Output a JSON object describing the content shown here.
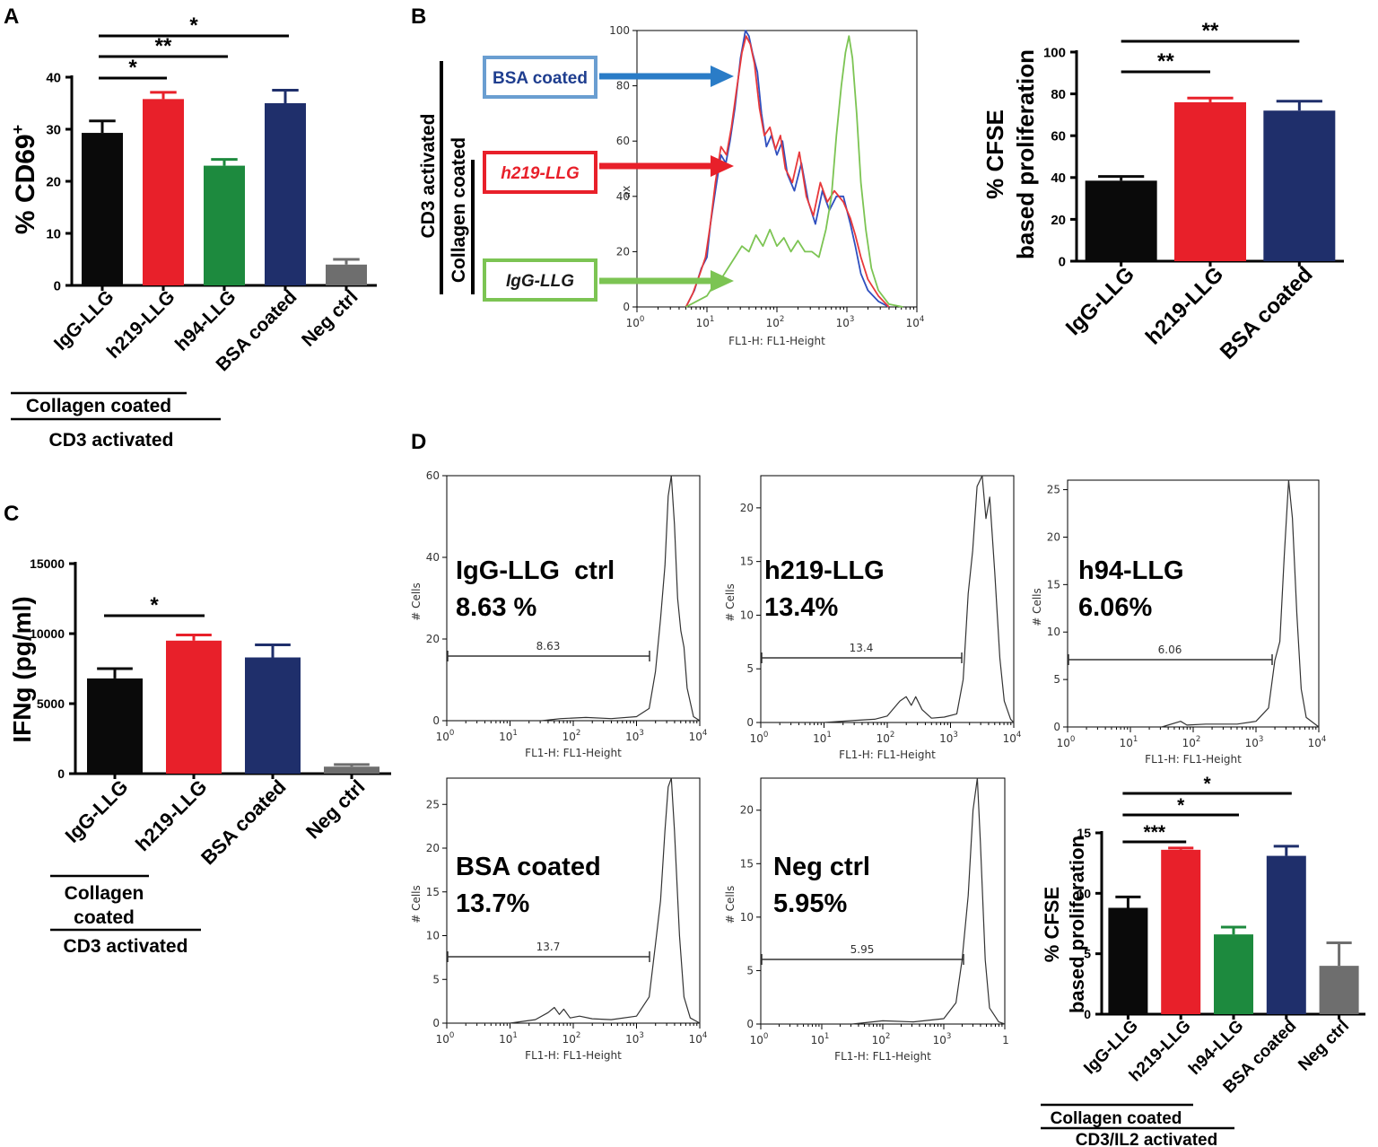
{
  "panels": {
    "A": "A",
    "B": "B",
    "C": "C",
    "D": "D"
  },
  "colors": {
    "black": "#0a0a0a",
    "red": "#e8202a",
    "green": "#1d8a3e",
    "navy": "#1f2f6b",
    "gray": "#6e6e6e",
    "blue_line": "#2f4fbf",
    "red_line": "#e8383a",
    "green_line": "#7cc453"
  },
  "chart_data": [
    {
      "id": "A",
      "type": "bar",
      "ylabel": "% CD69",
      "ylabel_sup": "+",
      "ylim": [
        0,
        40
      ],
      "yticks": [
        0,
        10,
        20,
        30,
        40
      ],
      "categories": [
        "IgG-LLG",
        "h219-LLG",
        "h94-LLG",
        "BSA coated",
        "Neg ctrl"
      ],
      "values": [
        29.3,
        35.8,
        23.0,
        35.0,
        4.0
      ],
      "errors": [
        2.3,
        1.3,
        1.2,
        2.5,
        1.0
      ],
      "colors": [
        "#0a0a0a",
        "#e8202a",
        "#1d8a3e",
        "#1f2f6b",
        "#6e6e6e"
      ],
      "significance": [
        {
          "from": 0,
          "to": 1,
          "label": "*"
        },
        {
          "from": 0,
          "to": 2,
          "label": "**"
        },
        {
          "from": 0,
          "to": 3,
          "label": "*"
        }
      ],
      "groups": [
        "Collagen coated",
        "CD3 activated"
      ]
    },
    {
      "id": "B-hist",
      "type": "line",
      "xlabel": "FL1-H: FL1-Height",
      "ylabel_fragment": "ax",
      "xlim": [
        1,
        10000
      ],
      "xscale": "log",
      "ylim": [
        0,
        100
      ],
      "yticks": [
        0,
        20,
        40,
        60,
        80,
        100
      ],
      "xtick_bases": [
        "10",
        "10",
        "10",
        "10",
        "10"
      ],
      "xtick_exps": [
        "0",
        "1",
        "2",
        "3",
        "4"
      ],
      "series": [
        {
          "name": "BSA coated",
          "color": "#2f4fbf",
          "points": [
            [
              0.7,
              0
            ],
            [
              0.82,
              6
            ],
            [
              0.92,
              14
            ],
            [
              1.0,
              18
            ],
            [
              1.05,
              30
            ],
            [
              1.12,
              42
            ],
            [
              1.2,
              55
            ],
            [
              1.27,
              52
            ],
            [
              1.33,
              60
            ],
            [
              1.4,
              72
            ],
            [
              1.48,
              90
            ],
            [
              1.55,
              100
            ],
            [
              1.6,
              98
            ],
            [
              1.65,
              92
            ],
            [
              1.72,
              85
            ],
            [
              1.78,
              70
            ],
            [
              1.85,
              58
            ],
            [
              1.92,
              62
            ],
            [
              2.0,
              55
            ],
            [
              2.08,
              60
            ],
            [
              2.15,
              48
            ],
            [
              2.25,
              42
            ],
            [
              2.35,
              52
            ],
            [
              2.45,
              38
            ],
            [
              2.55,
              30
            ],
            [
              2.65,
              42
            ],
            [
              2.75,
              35
            ],
            [
              2.85,
              40
            ],
            [
              2.95,
              40
            ],
            [
              3.05,
              30
            ],
            [
              3.12,
              22
            ],
            [
              3.2,
              12
            ],
            [
              3.3,
              6
            ],
            [
              3.45,
              2
            ],
            [
              3.6,
              0
            ]
          ]
        },
        {
          "name": "h219-LLG",
          "color": "#e8383a",
          "points": [
            [
              0.7,
              0
            ],
            [
              0.8,
              5
            ],
            [
              0.9,
              12
            ],
            [
              0.98,
              18
            ],
            [
              1.05,
              30
            ],
            [
              1.12,
              45
            ],
            [
              1.2,
              58
            ],
            [
              1.28,
              55
            ],
            [
              1.35,
              65
            ],
            [
              1.42,
              78
            ],
            [
              1.5,
              92
            ],
            [
              1.56,
              98
            ],
            [
              1.62,
              95
            ],
            [
              1.68,
              88
            ],
            [
              1.75,
              72
            ],
            [
              1.82,
              62
            ],
            [
              1.9,
              65
            ],
            [
              1.98,
              57
            ],
            [
              2.05,
              62
            ],
            [
              2.12,
              50
            ],
            [
              2.22,
              45
            ],
            [
              2.32,
              56
            ],
            [
              2.42,
              40
            ],
            [
              2.52,
              33
            ],
            [
              2.62,
              45
            ],
            [
              2.72,
              38
            ],
            [
              2.82,
              42
            ],
            [
              2.95,
              38
            ],
            [
              3.05,
              32
            ],
            [
              3.12,
              26
            ],
            [
              3.2,
              18
            ],
            [
              3.3,
              10
            ],
            [
              3.45,
              4
            ],
            [
              3.6,
              0
            ]
          ]
        },
        {
          "name": "IgG-LLG",
          "color": "#7cc453",
          "points": [
            [
              0.7,
              0
            ],
            [
              0.85,
              2
            ],
            [
              1.0,
              4
            ],
            [
              1.1,
              8
            ],
            [
              1.2,
              10
            ],
            [
              1.3,
              14
            ],
            [
              1.4,
              18
            ],
            [
              1.5,
              22
            ],
            [
              1.6,
              20
            ],
            [
              1.7,
              26
            ],
            [
              1.8,
              22
            ],
            [
              1.9,
              28
            ],
            [
              2.0,
              22
            ],
            [
              2.1,
              25
            ],
            [
              2.2,
              20
            ],
            [
              2.3,
              24
            ],
            [
              2.4,
              20
            ],
            [
              2.5,
              20
            ],
            [
              2.6,
              18
            ],
            [
              2.7,
              28
            ],
            [
              2.78,
              40
            ],
            [
              2.85,
              62
            ],
            [
              2.92,
              80
            ],
            [
              2.98,
              92
            ],
            [
              3.03,
              98
            ],
            [
              3.08,
              90
            ],
            [
              3.14,
              70
            ],
            [
              3.2,
              45
            ],
            [
              3.27,
              28
            ],
            [
              3.35,
              14
            ],
            [
              3.45,
              6
            ],
            [
              3.6,
              1
            ],
            [
              3.8,
              0
            ]
          ]
        }
      ],
      "legend_boxes": [
        "BSA coated",
        "h219-LLG",
        "IgG-LLG"
      ],
      "brackets": [
        "CD3 activated",
        "Collagen coated"
      ]
    },
    {
      "id": "B-bar",
      "type": "bar",
      "ylabel_line1": "% CFSE",
      "ylabel_line2": "based proliferation",
      "ylim": [
        0,
        100
      ],
      "yticks": [
        0,
        20,
        40,
        60,
        80,
        100
      ],
      "categories": [
        "IgG-LLG",
        "h219-LLG",
        "BSA coated"
      ],
      "values": [
        38.5,
        76.0,
        72.0
      ],
      "errors": [
        2.0,
        2.0,
        4.5
      ],
      "colors": [
        "#0a0a0a",
        "#e8202a",
        "#1f2f6b"
      ],
      "significance": [
        {
          "from": 0,
          "to": 1,
          "label": "**"
        },
        {
          "from": 0,
          "to": 2,
          "label": "**"
        }
      ]
    },
    {
      "id": "C",
      "type": "bar",
      "ylabel": "IFNg (pg/ml)",
      "ylim": [
        0,
        15000
      ],
      "yticks": [
        0,
        5000,
        10000,
        15000
      ],
      "categories": [
        "IgG-LLG",
        "h219-LLG",
        "BSA coated",
        "Neg ctrl"
      ],
      "values": [
        6800,
        9500,
        8300,
        500
      ],
      "errors": [
        700,
        400,
        900,
        150
      ],
      "colors": [
        "#0a0a0a",
        "#e8202a",
        "#1f2f6b",
        "#6e6e6e"
      ],
      "significance": [
        {
          "from": 0,
          "to": 1,
          "label": "*"
        }
      ],
      "groups": [
        "Collagen",
        "coated",
        "CD3 activated"
      ]
    },
    {
      "id": "D-hists",
      "type": "line",
      "xlabel": "FL1-H: FL1-Height",
      "ylabel": "# Cells",
      "panels": [
        {
          "name": "IgG-LLG  ctrl",
          "pct": "8.63 %",
          "gate": "8.63",
          "ymax": 60,
          "yticks": [
            0,
            20,
            40,
            60
          ],
          "last_tick": "4",
          "points": [
            [
              0,
              0
            ],
            [
              1.5,
              0
            ],
            [
              1.8,
              0.5
            ],
            [
              2.2,
              0.8
            ],
            [
              2.6,
              0.5
            ],
            [
              3.0,
              1
            ],
            [
              3.2,
              3
            ],
            [
              3.3,
              12
            ],
            [
              3.38,
              25
            ],
            [
              3.45,
              38
            ],
            [
              3.5,
              55
            ],
            [
              3.55,
              60
            ],
            [
              3.6,
              48
            ],
            [
              3.65,
              30
            ],
            [
              3.7,
              22
            ],
            [
              3.75,
              18
            ],
            [
              3.8,
              8
            ],
            [
              3.9,
              1
            ],
            [
              4,
              0
            ]
          ]
        },
        {
          "name": "h219-LLG",
          "pct": "13.4%",
          "gate": "13.4",
          "ymax": 23,
          "yticks": [
            0,
            5,
            10,
            15,
            20
          ],
          "last_tick": "4",
          "points": [
            [
              0,
              0
            ],
            [
              1.0,
              0
            ],
            [
              1.5,
              0.2
            ],
            [
              1.8,
              0.3
            ],
            [
              2.0,
              0.6
            ],
            [
              2.2,
              2.0
            ],
            [
              2.3,
              2.4
            ],
            [
              2.38,
              1.6
            ],
            [
              2.45,
              2.4
            ],
            [
              2.55,
              1.2
            ],
            [
              2.7,
              0.4
            ],
            [
              2.9,
              0.5
            ],
            [
              3.1,
              0.8
            ],
            [
              3.2,
              4
            ],
            [
              3.28,
              12
            ],
            [
              3.35,
              16
            ],
            [
              3.42,
              22
            ],
            [
              3.5,
              23
            ],
            [
              3.56,
              19
            ],
            [
              3.62,
              21
            ],
            [
              3.7,
              14
            ],
            [
              3.78,
              6
            ],
            [
              3.85,
              2
            ],
            [
              3.95,
              0.3
            ],
            [
              4,
              0
            ]
          ]
        },
        {
          "name": "h94-LLG",
          "pct": "6.06%",
          "gate": "6.06",
          "ymax": 26,
          "yticks": [
            0,
            5,
            10,
            15,
            20,
            25
          ],
          "last_tick": "4",
          "points": [
            [
              0,
              0
            ],
            [
              1.5,
              0
            ],
            [
              1.8,
              0.6
            ],
            [
              1.9,
              0.2
            ],
            [
              2.2,
              0.3
            ],
            [
              2.7,
              0.3
            ],
            [
              3.0,
              0.6
            ],
            [
              3.2,
              2
            ],
            [
              3.3,
              7
            ],
            [
              3.38,
              9
            ],
            [
              3.45,
              18
            ],
            [
              3.52,
              26
            ],
            [
              3.58,
              22
            ],
            [
              3.65,
              12
            ],
            [
              3.72,
              4
            ],
            [
              3.8,
              1
            ],
            [
              4,
              0
            ]
          ]
        },
        {
          "name": "BSA coated",
          "pct": "13.7%",
          "gate": "13.7",
          "ymax": 28,
          "yticks": [
            0,
            5,
            10,
            15,
            20,
            25
          ],
          "last_tick": "4",
          "points": [
            [
              0,
              0
            ],
            [
              1.0,
              0
            ],
            [
              1.4,
              0.4
            ],
            [
              1.6,
              1.2
            ],
            [
              1.7,
              1.8
            ],
            [
              1.78,
              1.0
            ],
            [
              1.85,
              1.6
            ],
            [
              1.95,
              0.6
            ],
            [
              2.1,
              0.8
            ],
            [
              2.3,
              0.5
            ],
            [
              2.6,
              0.4
            ],
            [
              3.0,
              0.8
            ],
            [
              3.2,
              3
            ],
            [
              3.3,
              9
            ],
            [
              3.38,
              14
            ],
            [
              3.45,
              22
            ],
            [
              3.5,
              27
            ],
            [
              3.55,
              28
            ],
            [
              3.6,
              22
            ],
            [
              3.68,
              10
            ],
            [
              3.75,
              3
            ],
            [
              3.85,
              0.6
            ],
            [
              4,
              0
            ]
          ]
        },
        {
          "name": "Neg ctrl",
          "pct": "5.95%",
          "gate": "5.95",
          "ymax": 23,
          "yticks": [
            0,
            5,
            10,
            15,
            20
          ],
          "last_tick": "",
          "points": [
            [
              0,
              0
            ],
            [
              1.5,
              0
            ],
            [
              2.0,
              0.3
            ],
            [
              2.5,
              0.2
            ],
            [
              3.0,
              0.5
            ],
            [
              3.2,
              2
            ],
            [
              3.3,
              6
            ],
            [
              3.4,
              12
            ],
            [
              3.48,
              20
            ],
            [
              3.55,
              23
            ],
            [
              3.6,
              17
            ],
            [
              3.68,
              6
            ],
            [
              3.75,
              1.5
            ],
            [
              3.9,
              0.2
            ],
            [
              4,
              0
            ]
          ]
        }
      ]
    },
    {
      "id": "D-bar",
      "type": "bar",
      "ylabel_line1": "% CFSE",
      "ylabel_line2": "based proliferation",
      "ylim": [
        0,
        15
      ],
      "yticks": [
        0,
        5,
        10,
        15
      ],
      "categories": [
        "IgG-LLG",
        "h219-LLG",
        "h94-LLG",
        "BSA coated",
        "Neg ctrl"
      ],
      "values": [
        8.8,
        13.6,
        6.6,
        13.1,
        4.0
      ],
      "errors": [
        0.9,
        0.15,
        0.6,
        0.8,
        1.9
      ],
      "colors": [
        "#0a0a0a",
        "#e8202a",
        "#1d8a3e",
        "#1f2f6b",
        "#6e6e6e"
      ],
      "significance": [
        {
          "from": 0,
          "to": 1,
          "label": "***"
        },
        {
          "from": 0,
          "to": 2,
          "label": "*"
        },
        {
          "from": 0,
          "to": 3,
          "label": "*"
        }
      ],
      "groups": [
        "Collagen coated",
        "CD3/IL2 activated"
      ]
    }
  ]
}
